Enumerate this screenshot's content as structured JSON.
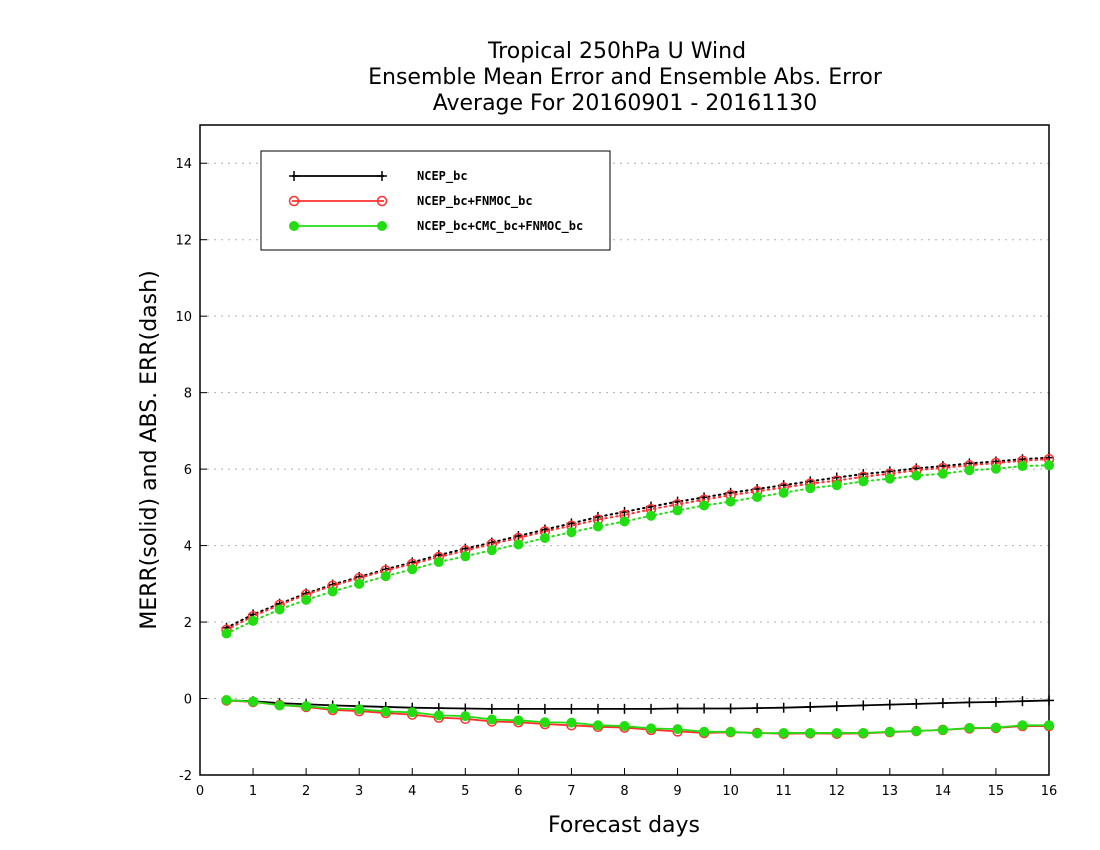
{
  "chart_data": {
    "type": "line",
    "title_lines": [
      "Tropical 250hPa U Wind",
      "Ensemble Mean Error and Ensemble Abs. Error",
      "Average For 20160901 - 20161130"
    ],
    "xlabel": "Forecast days",
    "ylabel": "MERR(solid) and ABS. ERR(dash)",
    "xlim": [
      0,
      16
    ],
    "ylim": [
      -2,
      15
    ],
    "x_ticks": [
      "0",
      "1",
      "2",
      "3",
      "4",
      "5",
      "6",
      "7",
      "8",
      "9",
      "10",
      "11",
      "12",
      "13",
      "14",
      "15",
      "16"
    ],
    "y_ticks": [
      "-2",
      "0",
      "2",
      "4",
      "6",
      "8",
      "10",
      "12",
      "14"
    ],
    "grid": "horizontal dotted",
    "legend_position": "top-left",
    "x": [
      0.5,
      1,
      1.5,
      2,
      2.5,
      3,
      3.5,
      4,
      4.5,
      5,
      5.5,
      6,
      6.5,
      7,
      7.5,
      8,
      8.5,
      9,
      9.5,
      10,
      10.5,
      11,
      11.5,
      12,
      12.5,
      13,
      13.5,
      14,
      14.5,
      15,
      15.5,
      16
    ],
    "series": [
      {
        "name": "NCEP_bc",
        "color": "#000000",
        "marker": "plus",
        "merr": [
          -0.05,
          -0.07,
          -0.12,
          -0.15,
          -0.18,
          -0.2,
          -0.22,
          -0.24,
          -0.25,
          -0.26,
          -0.27,
          -0.27,
          -0.27,
          -0.27,
          -0.27,
          -0.27,
          -0.27,
          -0.26,
          -0.26,
          -0.26,
          -0.25,
          -0.24,
          -0.22,
          -0.2,
          -0.18,
          -0.16,
          -0.14,
          -0.12,
          -0.1,
          -0.09,
          -0.07,
          -0.05
        ],
        "abs_err": [
          1.85,
          2.2,
          2.48,
          2.75,
          2.98,
          3.18,
          3.38,
          3.56,
          3.75,
          3.92,
          4.08,
          4.25,
          4.42,
          4.58,
          4.75,
          4.88,
          5.02,
          5.15,
          5.26,
          5.38,
          5.48,
          5.58,
          5.68,
          5.78,
          5.87,
          5.94,
          6.02,
          6.08,
          6.15,
          6.2,
          6.26,
          6.3
        ]
      },
      {
        "name": "NCEP_bc+FNMOC_bc",
        "color": "#ff3030",
        "marker": "open-circle",
        "merr": [
          -0.05,
          -0.09,
          -0.17,
          -0.22,
          -0.3,
          -0.33,
          -0.38,
          -0.42,
          -0.5,
          -0.53,
          -0.6,
          -0.62,
          -0.67,
          -0.7,
          -0.74,
          -0.76,
          -0.82,
          -0.86,
          -0.9,
          -0.88,
          -0.9,
          -0.92,
          -0.91,
          -0.92,
          -0.91,
          -0.88,
          -0.85,
          -0.82,
          -0.78,
          -0.77,
          -0.72,
          -0.72
        ],
        "abs_err": [
          1.8,
          2.15,
          2.45,
          2.72,
          2.95,
          3.15,
          3.35,
          3.52,
          3.7,
          3.87,
          4.04,
          4.2,
          4.37,
          4.52,
          4.68,
          4.8,
          4.95,
          5.08,
          5.2,
          5.32,
          5.42,
          5.52,
          5.62,
          5.7,
          5.8,
          5.88,
          5.97,
          6.03,
          6.1,
          6.16,
          6.22,
          6.26
        ]
      },
      {
        "name": "NCEP_bc+CMC_bc+FNMOC_bc",
        "color": "#22dd11",
        "marker": "filled-circle",
        "merr": [
          -0.04,
          -0.08,
          -0.18,
          -0.2,
          -0.26,
          -0.28,
          -0.34,
          -0.36,
          -0.44,
          -0.46,
          -0.55,
          -0.57,
          -0.62,
          -0.63,
          -0.7,
          -0.72,
          -0.78,
          -0.8,
          -0.87,
          -0.87,
          -0.91,
          -0.9,
          -0.9,
          -0.9,
          -0.9,
          -0.87,
          -0.85,
          -0.82,
          -0.77,
          -0.76,
          -0.7,
          -0.7
        ],
        "abs_err": [
          1.7,
          2.03,
          2.33,
          2.58,
          2.8,
          3.0,
          3.2,
          3.38,
          3.57,
          3.72,
          3.88,
          4.03,
          4.2,
          4.35,
          4.5,
          4.63,
          4.78,
          4.92,
          5.05,
          5.15,
          5.27,
          5.38,
          5.5,
          5.58,
          5.68,
          5.75,
          5.83,
          5.88,
          5.97,
          6.01,
          6.08,
          6.1
        ]
      }
    ]
  }
}
